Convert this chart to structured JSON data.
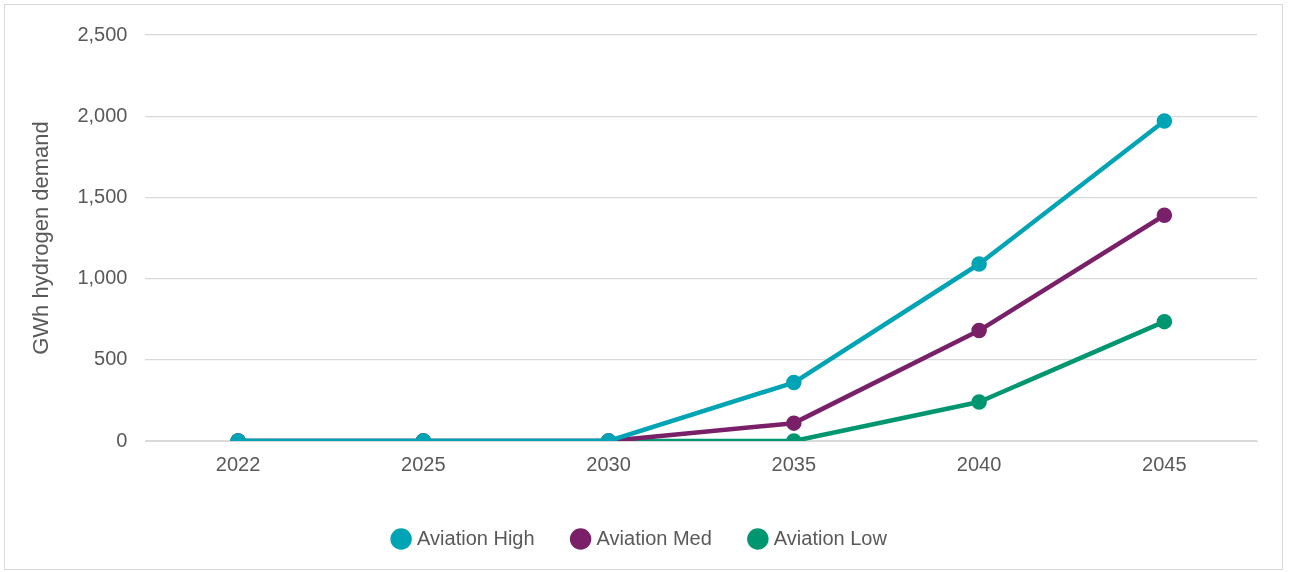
{
  "chart_data": {
    "type": "line",
    "ylabel": "GWh hydrogen demand",
    "categories": [
      "2022",
      "2025",
      "2030",
      "2035",
      "2040",
      "2045"
    ],
    "series": [
      {
        "name": "Aviation High",
        "color": "#00a4b4",
        "values": [
          0,
          0,
          0,
          360,
          1090,
          1970
        ]
      },
      {
        "name": "Aviation Med",
        "color": "#792068",
        "values": [
          0,
          0,
          0,
          110,
          680,
          1390
        ]
      },
      {
        "name": "Aviation Low",
        "color": "#009670",
        "values": [
          0,
          0,
          0,
          0,
          240,
          735
        ]
      }
    ],
    "ylim": [
      0,
      2500
    ],
    "yticks": [
      0,
      500,
      {
        "value": 1000,
        "label": "1,000"
      },
      {
        "value": 1500,
        "label": "1,500"
      },
      {
        "value": 2000,
        "label": "2,000"
      },
      {
        "value": 2500,
        "label": "2,500"
      }
    ],
    "grid": "y",
    "legend": "bottom",
    "marker": "circle",
    "line_style": "solid"
  }
}
